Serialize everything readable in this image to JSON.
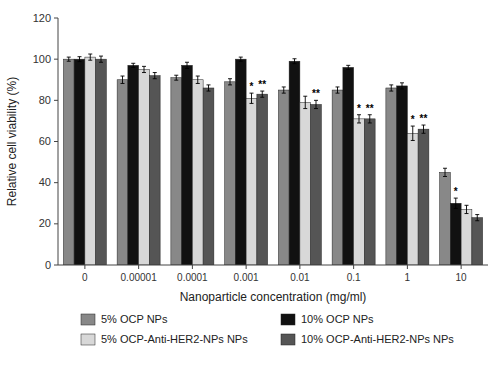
{
  "chart_data": {
    "type": "bar",
    "xlabel": "Nanoparticle concentration (mg/ml)",
    "ylabel": "Relative cell viability (%)",
    "categories": [
      "0",
      "0.00001",
      "0.0001",
      "0.001",
      "0.01",
      "0.1",
      "1",
      "10"
    ],
    "series": [
      {
        "name": "5% OCP NPs",
        "color": "#888888",
        "values": [
          100,
          90,
          91,
          89,
          85,
          85,
          86,
          45
        ],
        "errors": [
          1.0,
          1.8,
          1.2,
          1.5,
          1.5,
          1.5,
          1.5,
          2.0
        ]
      },
      {
        "name": "10% OCP NPs",
        "color": "#111111",
        "values": [
          100,
          97,
          97,
          100,
          99,
          96,
          87,
          30
        ],
        "errors": [
          1.2,
          1.0,
          1.5,
          1.0,
          1.2,
          1.0,
          1.5,
          2.5
        ]
      },
      {
        "name": "5% OCP-Anti-HER2-NPs NPs",
        "color": "#d8d8d8",
        "values": [
          101,
          95,
          90,
          81,
          79,
          71,
          64,
          27
        ],
        "errors": [
          1.5,
          1.5,
          1.8,
          2.5,
          3.0,
          2.0,
          3.5,
          2.0
        ]
      },
      {
        "name": "10% OCP-Anti-HER2-NPs NPs",
        "color": "#555555",
        "values": [
          100,
          92,
          86,
          83,
          78,
          71,
          66,
          23
        ],
        "errors": [
          1.5,
          1.5,
          1.5,
          1.5,
          2.0,
          2.0,
          2.0,
          1.5
        ]
      }
    ],
    "annotations": [
      {
        "text": "*",
        "category": "0.001",
        "series": "5% OCP-Anti-HER2-NPs NPs"
      },
      {
        "text": "**",
        "category": "0.001",
        "series": "10% OCP-Anti-HER2-NPs NPs"
      },
      {
        "text": "**",
        "category": "0.01",
        "series": "10% OCP-Anti-HER2-NPs NPs"
      },
      {
        "text": "*",
        "category": "0.1",
        "series": "5% OCP-Anti-HER2-NPs NPs"
      },
      {
        "text": "**",
        "category": "0.1",
        "series": "10% OCP-Anti-HER2-NPs NPs"
      },
      {
        "text": "*",
        "category": "1",
        "series": "5% OCP-Anti-HER2-NPs NPs"
      },
      {
        "text": "**",
        "category": "1",
        "series": "10% OCP-Anti-HER2-NPs NPs"
      },
      {
        "text": "*",
        "category": "10",
        "series": "10% OCP NPs"
      }
    ],
    "ylim": [
      0,
      120
    ],
    "yticks": [
      0,
      20,
      40,
      60,
      80,
      100,
      120
    ],
    "grid": false,
    "legend": "bottom"
  }
}
